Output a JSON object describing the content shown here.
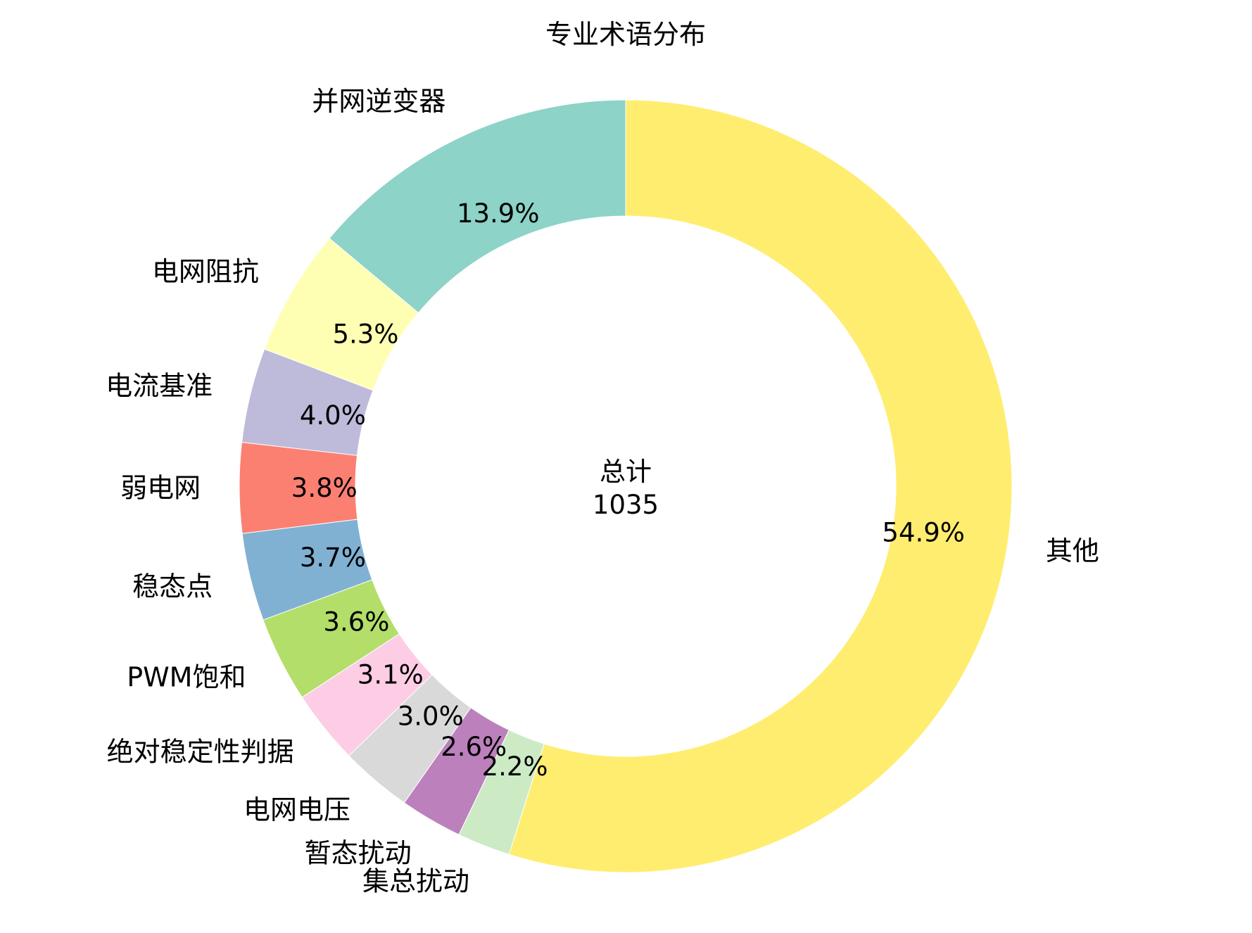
{
  "chart_data": {
    "type": "pie",
    "variant": "donut",
    "title": "专业术语分布",
    "center_label": "总计",
    "center_value": "1035",
    "start_angle_deg": 90,
    "direction": "counterclockwise",
    "categories": [
      "并网逆变器",
      "电网阻抗",
      "电流基准",
      "弱电网",
      "稳态点",
      "PWM饱和",
      "绝对稳定性判据",
      "电网电压",
      "暂态扰动",
      "集总扰动",
      "其他"
    ],
    "values": [
      144,
      55,
      41,
      39,
      38,
      37,
      32,
      31,
      27,
      23,
      568
    ],
    "percent_labels": [
      "13.9%",
      "5.3%",
      "4.0%",
      "3.8%",
      "3.7%",
      "3.6%",
      "3.1%",
      "3.0%",
      "2.6%",
      "2.2%",
      "54.9%"
    ],
    "colors": [
      "#8dd3c7",
      "#ffffb3",
      "#bebada",
      "#fb8072",
      "#80b1d3",
      "#b3de69",
      "#fccde5",
      "#d9d9d9",
      "#bc80bd",
      "#ccebc5",
      "#ffed6f"
    ],
    "legend": "none",
    "xlabel": "",
    "ylabel": ""
  }
}
